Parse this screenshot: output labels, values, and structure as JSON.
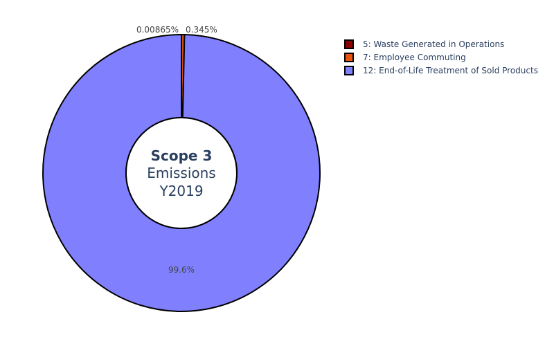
{
  "chart_data": {
    "type": "pie",
    "hole": true,
    "center_text": {
      "line1": "Scope 3",
      "line2": "Emissions",
      "line3": "Y2019"
    },
    "slices": [
      {
        "label": "5: Waste Generated in Operations",
        "value": 0.00865,
        "percent_text": "0.00865%",
        "color": "#8b0000"
      },
      {
        "label": "7: Employee Commuting",
        "value": 0.345,
        "percent_text": "0.345%",
        "color": "#e8540c"
      },
      {
        "label": "12: End-of-Life Treatment of Sold Products",
        "value": 99.6,
        "percent_text": "99.6%",
        "color": "#8080ff"
      }
    ],
    "legend_position": "top-right"
  }
}
